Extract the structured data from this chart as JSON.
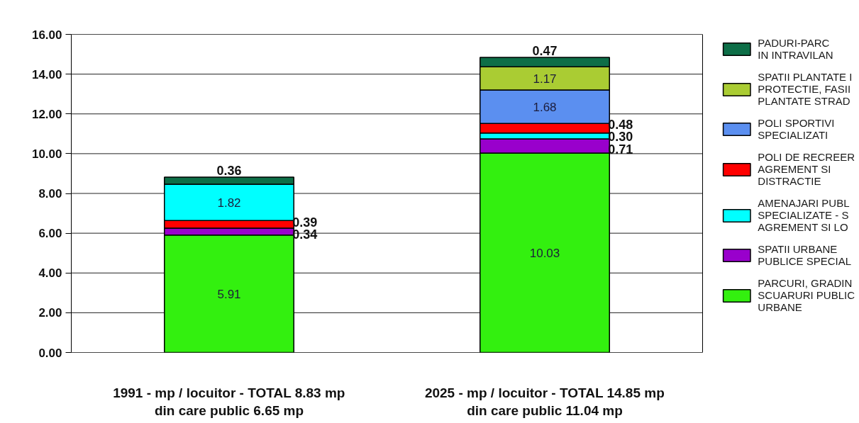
{
  "chart_data": {
    "type": "bar",
    "stacked": true,
    "categories": [
      "1991 - mp / locuitor - TOTAL 8.83 mp\ndin care public 6.65 mp",
      "2025 - mp / locuitor - TOTAL 14.85 mp\ndin care public 11.04 mp"
    ],
    "ylim": [
      0,
      16
    ],
    "yticks": [
      {
        "value": 0,
        "label": "0.00"
      },
      {
        "value": 2,
        "label": "2.00"
      },
      {
        "value": 4,
        "label": "4.00"
      },
      {
        "value": 6,
        "label": "6.00"
      },
      {
        "value": 8,
        "label": "8.00"
      },
      {
        "value": 10,
        "label": "10.00"
      },
      {
        "value": 12,
        "label": "12.00"
      },
      {
        "value": 14,
        "label": "14.00"
      },
      {
        "value": 16,
        "label": "16.00"
      }
    ],
    "grid": "y",
    "legend": "right",
    "series": [
      {
        "name": "PARCURI, GRADIN\nSCUARURI PUBLIC\nURBANE",
        "color": "#33f00f",
        "values": [
          5.91,
          10.03
        ],
        "value_labels": [
          "5.91",
          "10.03"
        ]
      },
      {
        "name": "SPATII URBANE\nPUBLICE SPECIAL",
        "color": "#9900cc",
        "values": [
          0.34,
          0.71
        ],
        "value_labels": [
          "0.34",
          "0.71"
        ]
      },
      {
        "name": "AMENAJARI PUBL\nSPECIALIZATE - S\nAGREMENT SI LO",
        "color": "#00ffff",
        "values": [
          null,
          0.3
        ],
        "value_labels": [
          null,
          "0.30"
        ]
      },
      {
        "name": "POLI DE RECREER\nAGREMENT SI\nDISTRACTIE",
        "color": "#ff0000",
        "values": [
          0.39,
          0.48
        ],
        "value_labels": [
          "0.39",
          "0.48"
        ]
      },
      {
        "color": "#00ffff",
        "values": [
          1.82,
          null
        ],
        "value_labels": [
          "1.82",
          null
        ]
      },
      {
        "name": "POLI SPORTIVI\nSPECIALIZATI",
        "color": "#5b8ff0",
        "values": [
          null,
          1.68
        ],
        "value_labels": [
          null,
          "1.68"
        ]
      },
      {
        "name": "SPATII PLANTATE I\nPROTECTIE, FASII\nPLANTATE STRAD",
        "color": "#aacc33",
        "values": [
          null,
          1.17
        ],
        "value_labels": [
          null,
          "1.17"
        ]
      },
      {
        "name": "PADURI-PARC\nIN INTRAVILAN",
        "color": "#0d6e47",
        "values": [
          0.36,
          0.47
        ],
        "value_labels": [
          "0.36",
          "0.47"
        ]
      }
    ]
  }
}
